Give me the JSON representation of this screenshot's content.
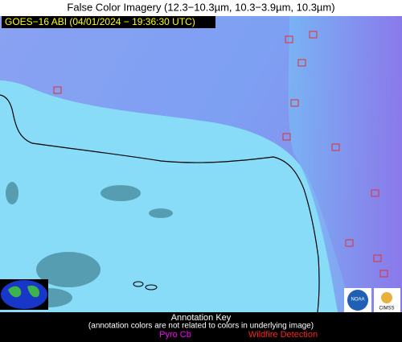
{
  "header": {
    "title": "False Color Imagery (12.3−10.3µm, 10.3−3.9µm, 10.3µm)"
  },
  "image": {
    "label": "GOES−16 ABI (04/01/2024 − 19:36:30 UTC)"
  },
  "key": {
    "title": "Annotation Key",
    "note": "(annotation colors are not related to colors in underlying image)",
    "items": [
      "Pyro Cb",
      "Wildfire Detection"
    ]
  },
  "logos": [
    "NOAA",
    "CIMSS"
  ]
}
